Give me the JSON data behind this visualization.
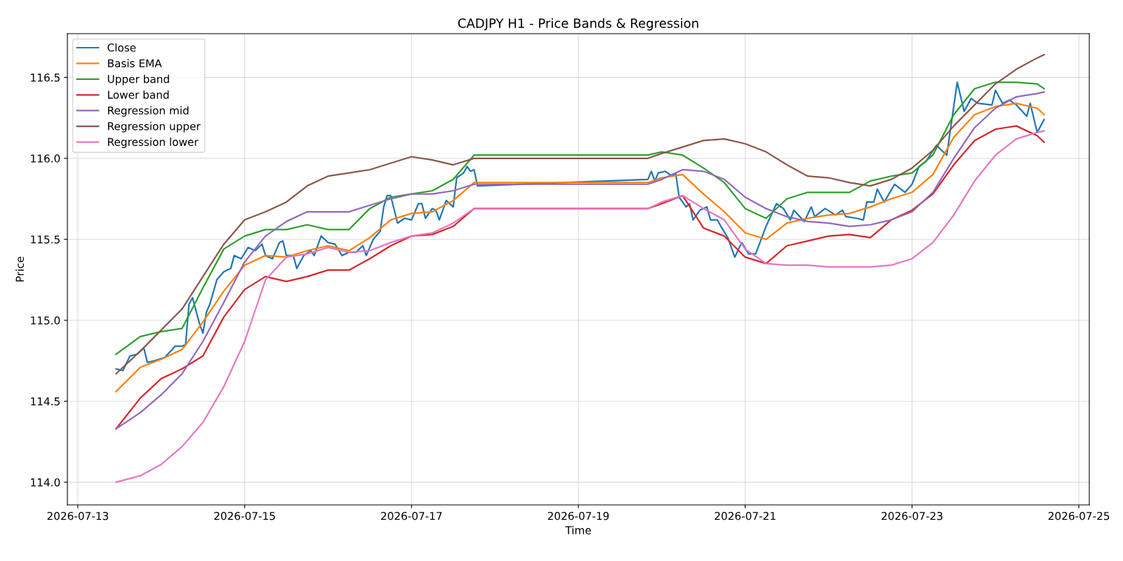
{
  "chart_data": {
    "type": "line",
    "title": "CADJPY H1 - Price Bands & Regression",
    "xlabel": "Time",
    "ylabel": "Price",
    "x": [
      "2026-07-13T11:00",
      "2026-07-13T18:00",
      "2026-07-14T00:00",
      "2026-07-14T06:00",
      "2026-07-14T12:00",
      "2026-07-14T18:00",
      "2026-07-15T00:00",
      "2026-07-15T06:00",
      "2026-07-15T12:00",
      "2026-07-15T18:00",
      "2026-07-16T00:00",
      "2026-07-16T06:00",
      "2026-07-16T12:00",
      "2026-07-16T18:00",
      "2026-07-17T00:00",
      "2026-07-17T06:00",
      "2026-07-17T12:00",
      "2026-07-17T18:00",
      "2026-07-19T20:00",
      "2026-07-20T00:00",
      "2026-07-20T06:00",
      "2026-07-20T12:00",
      "2026-07-20T18:00",
      "2026-07-21T00:00",
      "2026-07-21T06:00",
      "2026-07-21T12:00",
      "2026-07-21T18:00",
      "2026-07-22T00:00",
      "2026-07-22T06:00",
      "2026-07-22T12:00",
      "2026-07-22T18:00",
      "2026-07-23T00:00",
      "2026-07-23T06:00",
      "2026-07-23T12:00",
      "2026-07-23T18:00",
      "2026-07-24T00:00",
      "2026-07-24T06:00",
      "2026-07-24T12:00",
      "2026-07-24T14:00"
    ],
    "series": [
      {
        "name": "Close",
        "color": "#1f77b4",
        "x": [
          "2026-07-13T11:00",
          "2026-07-13T13:00",
          "2026-07-13T15:00",
          "2026-07-13T17:00",
          "2026-07-13T19:00",
          "2026-07-13T20:00",
          "2026-07-13T22:00",
          "2026-07-14T01:00",
          "2026-07-14T04:00",
          "2026-07-14T06:00",
          "2026-07-14T07:00",
          "2026-07-14T08:00",
          "2026-07-14T09:00",
          "2026-07-14T11:00",
          "2026-07-14T12:00",
          "2026-07-14T13:00",
          "2026-07-14T14:00",
          "2026-07-14T16:00",
          "2026-07-14T18:00",
          "2026-07-14T20:00",
          "2026-07-14T21:00",
          "2026-07-14T23:00",
          "2026-07-15T01:00",
          "2026-07-15T03:00",
          "2026-07-15T05:00",
          "2026-07-15T06:00",
          "2026-07-15T08:00",
          "2026-07-15T10:00",
          "2026-07-15T11:00",
          "2026-07-15T12:00",
          "2026-07-15T14:00",
          "2026-07-15T15:00",
          "2026-07-15T17:00",
          "2026-07-15T19:00",
          "2026-07-15T20:00",
          "2026-07-15T22:00",
          "2026-07-16T00:00",
          "2026-07-16T02:00",
          "2026-07-16T04:00",
          "2026-07-16T06:00",
          "2026-07-16T08:00",
          "2026-07-16T10:00",
          "2026-07-16T11:00",
          "2026-07-16T13:00",
          "2026-07-16T15:00",
          "2026-07-16T16:00",
          "2026-07-16T17:00",
          "2026-07-16T18:00",
          "2026-07-16T20:00",
          "2026-07-16T22:00",
          "2026-07-17T00:00",
          "2026-07-17T02:00",
          "2026-07-17T03:00",
          "2026-07-17T04:00",
          "2026-07-17T06:00",
          "2026-07-17T07:00",
          "2026-07-17T08:00",
          "2026-07-17T10:00",
          "2026-07-17T12:00",
          "2026-07-17T13:00",
          "2026-07-17T15:00",
          "2026-07-17T16:00",
          "2026-07-17T17:00",
          "2026-07-17T18:00",
          "2026-07-17T19:00",
          "2026-07-19T20:00",
          "2026-07-19T21:00",
          "2026-07-19T22:00",
          "2026-07-19T23:00",
          "2026-07-20T01:00",
          "2026-07-20T03:00",
          "2026-07-20T04:00",
          "2026-07-20T05:00",
          "2026-07-20T07:00",
          "2026-07-20T08:00",
          "2026-07-20T09:00",
          "2026-07-20T11:00",
          "2026-07-20T13:00",
          "2026-07-20T14:00",
          "2026-07-20T16:00",
          "2026-07-20T17:00",
          "2026-07-20T19:00",
          "2026-07-20T21:00",
          "2026-07-20T23:00",
          "2026-07-21T01:00",
          "2026-07-21T03:00",
          "2026-07-21T06:00",
          "2026-07-21T09:00",
          "2026-07-21T11:00",
          "2026-07-21T13:00",
          "2026-07-21T14:00",
          "2026-07-21T17:00",
          "2026-07-21T19:00",
          "2026-07-21T20:00",
          "2026-07-21T23:00",
          "2026-07-22T02:00",
          "2026-07-22T04:00",
          "2026-07-22T05:00",
          "2026-07-22T08:00",
          "2026-07-22T10:00",
          "2026-07-22T11:00",
          "2026-07-22T13:00",
          "2026-07-22T14:00",
          "2026-07-22T16:00",
          "2026-07-22T19:00",
          "2026-07-22T22:00",
          "2026-07-23T00:00",
          "2026-07-23T02:00",
          "2026-07-23T04:00",
          "2026-07-23T07:00",
          "2026-07-23T10:00",
          "2026-07-23T13:00",
          "2026-07-23T15:00",
          "2026-07-23T17:00",
          "2026-07-23T19:00",
          "2026-07-23T23:00",
          "2026-07-24T00:00",
          "2026-07-24T02:00",
          "2026-07-24T04:00",
          "2026-07-24T06:00",
          "2026-07-24T09:00",
          "2026-07-24T10:00",
          "2026-07-24T12:00",
          "2026-07-24T14:00"
        ],
        "values": [
          114.7,
          114.69,
          114.78,
          114.79,
          114.83,
          114.74,
          114.75,
          114.77,
          114.84,
          114.84,
          114.85,
          115.1,
          115.14,
          114.98,
          114.92,
          115.05,
          115.1,
          115.25,
          115.3,
          115.32,
          115.4,
          115.38,
          115.45,
          115.43,
          115.47,
          115.4,
          115.38,
          115.48,
          115.49,
          115.4,
          115.4,
          115.32,
          115.4,
          115.43,
          115.4,
          115.52,
          115.48,
          115.47,
          115.4,
          115.42,
          115.42,
          115.46,
          115.4,
          115.5,
          115.55,
          115.7,
          115.77,
          115.77,
          115.6,
          115.63,
          115.62,
          115.72,
          115.72,
          115.63,
          115.69,
          115.68,
          115.62,
          115.74,
          115.7,
          115.88,
          115.91,
          115.95,
          115.92,
          115.93,
          115.83,
          115.87,
          115.92,
          115.86,
          115.91,
          115.92,
          115.89,
          115.91,
          115.76,
          115.7,
          115.72,
          115.62,
          115.68,
          115.7,
          115.62,
          115.62,
          115.58,
          115.51,
          115.39,
          115.48,
          115.41,
          115.41,
          115.58,
          115.72,
          115.69,
          115.62,
          115.68,
          115.61,
          115.7,
          115.64,
          115.69,
          115.65,
          115.68,
          115.64,
          115.63,
          115.62,
          115.73,
          115.73,
          115.81,
          115.73,
          115.84,
          115.79,
          115.84,
          115.95,
          115.98,
          116.08,
          116.02,
          116.47,
          116.29,
          116.37,
          116.34,
          116.33,
          116.42,
          116.34,
          116.36,
          116.33,
          116.26,
          116.34,
          116.16,
          116.24
        ]
      },
      {
        "name": "Basis EMA",
        "color": "#ff7f0e",
        "values": [
          114.56,
          114.71,
          114.76,
          114.82,
          114.99,
          115.18,
          115.34,
          115.4,
          115.39,
          115.43,
          115.46,
          115.43,
          115.51,
          115.62,
          115.66,
          115.67,
          115.74,
          115.85,
          115.85,
          115.88,
          115.9,
          115.78,
          115.67,
          115.54,
          115.5,
          115.6,
          115.63,
          115.65,
          115.66,
          115.7,
          115.75,
          115.79,
          115.9,
          116.13,
          116.27,
          116.32,
          116.34,
          116.31,
          116.27
        ]
      },
      {
        "name": "Upper band",
        "color": "#2ca02c",
        "values": [
          114.79,
          114.9,
          114.93,
          114.95,
          115.2,
          115.44,
          115.52,
          115.56,
          115.56,
          115.59,
          115.56,
          115.56,
          115.69,
          115.76,
          115.78,
          115.8,
          115.87,
          116.02,
          116.02,
          116.04,
          116.02,
          115.94,
          115.85,
          115.69,
          115.63,
          115.75,
          115.79,
          115.79,
          115.79,
          115.86,
          115.89,
          115.91,
          116.02,
          116.27,
          116.43,
          116.47,
          116.47,
          116.46,
          116.43
        ]
      },
      {
        "name": "Lower band",
        "color": "#d62728",
        "values": [
          114.33,
          114.52,
          114.64,
          114.7,
          114.78,
          115.02,
          115.19,
          115.27,
          115.24,
          115.27,
          115.31,
          115.31,
          115.38,
          115.46,
          115.52,
          115.53,
          115.58,
          115.69,
          115.69,
          115.72,
          115.77,
          115.57,
          115.52,
          115.39,
          115.35,
          115.46,
          115.49,
          115.52,
          115.53,
          115.51,
          115.62,
          115.68,
          115.78,
          115.96,
          116.11,
          116.18,
          116.2,
          116.14,
          116.1
        ]
      },
      {
        "name": "Regression mid",
        "color": "#9467bd",
        "values": [
          114.33,
          114.43,
          114.54,
          114.67,
          114.87,
          115.11,
          115.36,
          115.52,
          115.61,
          115.67,
          115.67,
          115.67,
          115.71,
          115.75,
          115.78,
          115.78,
          115.8,
          115.84,
          115.84,
          115.87,
          115.93,
          115.92,
          115.87,
          115.76,
          115.69,
          115.64,
          115.61,
          115.6,
          115.58,
          115.59,
          115.62,
          115.67,
          115.79,
          116.0,
          116.19,
          116.31,
          116.38,
          116.4,
          116.41
        ]
      },
      {
        "name": "Regression upper",
        "color": "#8c564b",
        "values": [
          114.67,
          114.81,
          114.94,
          115.07,
          115.27,
          115.47,
          115.62,
          115.67,
          115.73,
          115.83,
          115.89,
          115.91,
          115.93,
          115.97,
          116.01,
          115.99,
          115.96,
          116.0,
          116.0,
          116.03,
          116.07,
          116.11,
          116.12,
          116.09,
          116.04,
          115.96,
          115.89,
          115.88,
          115.85,
          115.83,
          115.87,
          115.94,
          116.05,
          116.2,
          116.33,
          116.46,
          116.55,
          116.62,
          116.64
        ]
      },
      {
        "name": "Regression lower",
        "color": "#e377c2",
        "values": [
          114.0,
          114.04,
          114.11,
          114.22,
          114.37,
          114.59,
          114.87,
          115.25,
          115.39,
          115.41,
          115.45,
          115.42,
          115.43,
          115.48,
          115.52,
          115.54,
          115.6,
          115.69,
          115.69,
          115.73,
          115.77,
          115.69,
          115.62,
          115.44,
          115.35,
          115.34,
          115.34,
          115.33,
          115.33,
          115.33,
          115.34,
          115.38,
          115.48,
          115.65,
          115.86,
          116.02,
          116.12,
          116.16,
          116.17
        ]
      }
    ],
    "xlim": [
      "2026-07-12T21:00",
      "2026-07-25T03:00"
    ],
    "xticks": [
      {
        "value": "2026-07-13",
        "label": "2026-07-13"
      },
      {
        "value": "2026-07-15",
        "label": "2026-07-15"
      },
      {
        "value": "2026-07-17",
        "label": "2026-07-17"
      },
      {
        "value": "2026-07-19",
        "label": "2026-07-19"
      },
      {
        "value": "2026-07-21",
        "label": "2026-07-21"
      },
      {
        "value": "2026-07-23",
        "label": "2026-07-23"
      },
      {
        "value": "2026-07-25",
        "label": "2026-07-25"
      }
    ],
    "ylim": [
      113.86,
      116.77
    ],
    "yticks": [
      {
        "value": 114,
        "label": "114.0"
      },
      114.5,
      {
        "value": 115,
        "label": "115.0"
      },
      115.5,
      {
        "value": 116,
        "label": "116.0"
      },
      116.5
    ],
    "grid": true,
    "legend": "top left",
    "line_style": "solid"
  }
}
